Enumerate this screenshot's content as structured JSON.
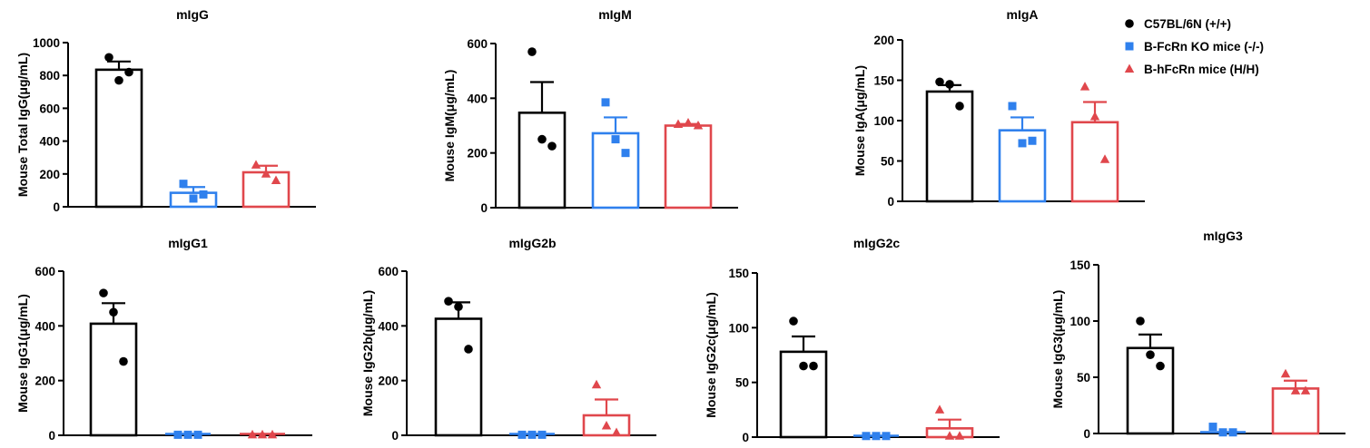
{
  "groups": [
    {
      "name": "C57BL/6N (+/+)",
      "color": "#000000",
      "marker": "circle"
    },
    {
      "name": "B-FcRn KO mice (-/-)",
      "color": "#2F80ED",
      "marker": "square"
    },
    {
      "name": "B-hFcRn mice (H/H)",
      "color": "#E0474C",
      "marker": "triangle"
    }
  ],
  "chart_data": [
    {
      "type": "bar",
      "title": "mIgG",
      "ylabel": "Mouse Total IgG(μg/mL)",
      "ylim": [
        0,
        1000
      ],
      "yticks": [
        0,
        200,
        400,
        600,
        800,
        1000
      ],
      "series": [
        {
          "name": "C57BL/6N (+/+)",
          "mean": 835,
          "sem": 50,
          "points": [
            910,
            770,
            820
          ]
        },
        {
          "name": "B-FcRn KO mice (-/-)",
          "mean": 85,
          "sem": 35,
          "points": [
            140,
            50,
            75
          ]
        },
        {
          "name": "B-hFcRn mice (H/H)",
          "mean": 210,
          "sem": 40,
          "points": [
            255,
            200,
            160
          ]
        }
      ]
    },
    {
      "type": "bar",
      "title": "mIgM",
      "ylabel": "Mouse IgM(μg/mL)",
      "ylim": [
        0,
        600
      ],
      "yticks": [
        0,
        200,
        400,
        600
      ],
      "series": [
        {
          "name": "C57BL/6N (+/+)",
          "mean": 347,
          "sem": 112,
          "points": [
            570,
            250,
            225
          ]
        },
        {
          "name": "B-FcRn KO mice (-/-)",
          "mean": 272,
          "sem": 58,
          "points": [
            385,
            250,
            200
          ]
        },
        {
          "name": "B-hFcRn mice (H/H)",
          "mean": 300,
          "sem": 6,
          "points": [
            305,
            310,
            300
          ]
        }
      ]
    },
    {
      "type": "bar",
      "title": "mIgA",
      "ylabel": "Mouse IgA(μg/mL)",
      "ylim": [
        0,
        200
      ],
      "yticks": [
        0,
        50,
        100,
        150,
        200
      ],
      "series": [
        {
          "name": "C57BL/6N (+/+)",
          "mean": 136,
          "sem": 8,
          "points": [
            148,
            145,
            118
          ]
        },
        {
          "name": "B-FcRn KO mice (-/-)",
          "mean": 88,
          "sem": 16,
          "points": [
            118,
            72,
            75
          ]
        },
        {
          "name": "B-hFcRn mice (H/H)",
          "mean": 98,
          "sem": 25,
          "points": [
            142,
            105,
            52
          ]
        }
      ]
    },
    {
      "type": "bar",
      "title": "mIgG1",
      "ylabel": "Mouse IgG1(μg/mL)",
      "ylim": [
        0,
        600
      ],
      "yticks": [
        0,
        200,
        400,
        600
      ],
      "series": [
        {
          "name": "C57BL/6N (+/+)",
          "mean": 408,
          "sem": 75,
          "points": [
            520,
            450,
            270
          ]
        },
        {
          "name": "B-FcRn KO mice (-/-)",
          "mean": 2,
          "sem": 1,
          "points": [
            2,
            2,
            2
          ]
        },
        {
          "name": "B-hFcRn mice (H/H)",
          "mean": 2,
          "sem": 1,
          "points": [
            2,
            2,
            2
          ]
        }
      ]
    },
    {
      "type": "bar",
      "title": "mIgG2b",
      "ylabel": "Mouse IgG2b(μg/mL)",
      "ylim": [
        0,
        600
      ],
      "yticks": [
        0,
        200,
        400,
        600
      ],
      "series": [
        {
          "name": "C57BL/6N (+/+)",
          "mean": 426,
          "sem": 60,
          "points": [
            490,
            470,
            315
          ]
        },
        {
          "name": "B-FcRn KO mice (-/-)",
          "mean": 2,
          "sem": 1,
          "points": [
            2,
            2,
            2
          ]
        },
        {
          "name": "B-hFcRn mice (H/H)",
          "mean": 73,
          "sem": 58,
          "points": [
            185,
            35,
            10
          ]
        }
      ]
    },
    {
      "type": "bar",
      "title": "mIgG2c",
      "ylabel": "Mouse IgG2c(μg/mL)",
      "ylim": [
        0,
        150
      ],
      "yticks": [
        0,
        50,
        100,
        150
      ],
      "series": [
        {
          "name": "C57BL/6N (+/+)",
          "mean": 78,
          "sem": 14,
          "points": [
            106,
            65,
            65
          ]
        },
        {
          "name": "B-FcRn KO mice (-/-)",
          "mean": 1,
          "sem": 0.5,
          "points": [
            1,
            1,
            1
          ]
        },
        {
          "name": "B-hFcRn mice (H/H)",
          "mean": 8,
          "sem": 8,
          "points": [
            25,
            1,
            1
          ]
        }
      ]
    },
    {
      "type": "bar",
      "title": "mIgG3",
      "ylabel": "Mouse IgG3(μg/mL)",
      "ylim": [
        0,
        150
      ],
      "yticks": [
        0,
        50,
        100,
        150
      ],
      "series": [
        {
          "name": "C57BL/6N (+/+)",
          "mean": 76,
          "sem": 12,
          "points": [
            100,
            70,
            60
          ]
        },
        {
          "name": "B-FcRn KO mice (-/-)",
          "mean": 2,
          "sem": 2,
          "points": [
            6,
            1,
            1
          ]
        },
        {
          "name": "B-hFcRn mice (H/H)",
          "mean": 40,
          "sem": 7,
          "points": [
            53,
            38,
            38
          ]
        }
      ]
    }
  ]
}
